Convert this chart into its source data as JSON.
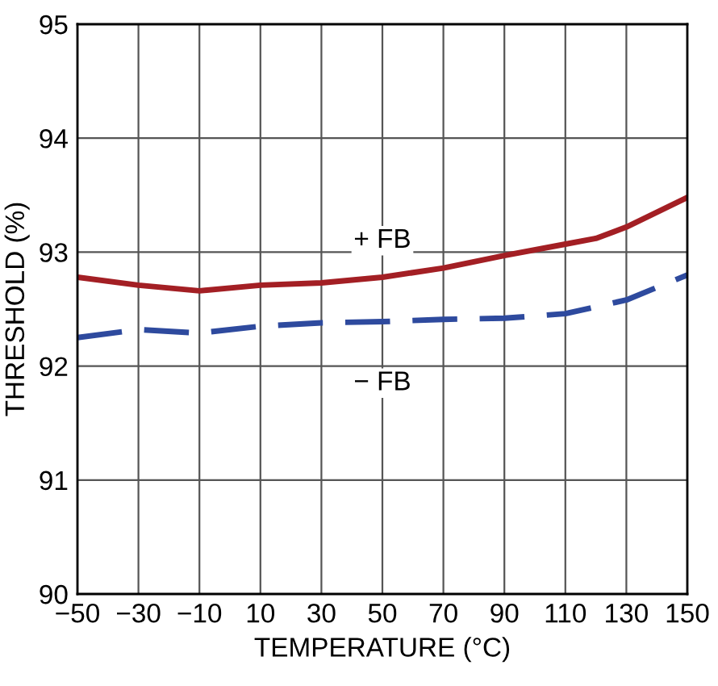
{
  "chart_data": {
    "type": "line",
    "xlabel": "TEMPERATURE (°C)",
    "ylabel": "THRESHOLD (%)",
    "xlim": [
      -50,
      150
    ],
    "xticks": [
      -50,
      -30,
      -10,
      10,
      30,
      50,
      70,
      90,
      110,
      130,
      150
    ],
    "ylim": [
      90,
      95
    ],
    "yticks": [
      90,
      91,
      92,
      93,
      94,
      95
    ],
    "grid": true,
    "marker": "none",
    "series": [
      {
        "color": "#a31f24",
        "line_style": "solid",
        "x": [
          -50,
          -30,
          -10,
          10,
          30,
          50,
          70,
          90,
          110,
          120,
          130,
          150
        ],
        "values": [
          92.78,
          92.71,
          92.66,
          92.71,
          92.73,
          92.78,
          92.86,
          92.97,
          93.07,
          93.12,
          93.22,
          93.48
        ]
      },
      {
        "color": "#2e4a9e",
        "line_style": "dashed",
        "x": [
          -50,
          -30,
          -10,
          10,
          30,
          50,
          70,
          90,
          110,
          130,
          150
        ],
        "values": [
          92.25,
          92.32,
          92.29,
          92.35,
          92.38,
          92.39,
          92.41,
          92.42,
          92.46,
          92.58,
          92.8
        ]
      }
    ],
    "annotations": [
      {
        "text": "+ FB",
        "x": 50,
        "y": 93.1
      },
      {
        "text": "− FB",
        "x": 50,
        "y": 91.85
      }
    ]
  }
}
